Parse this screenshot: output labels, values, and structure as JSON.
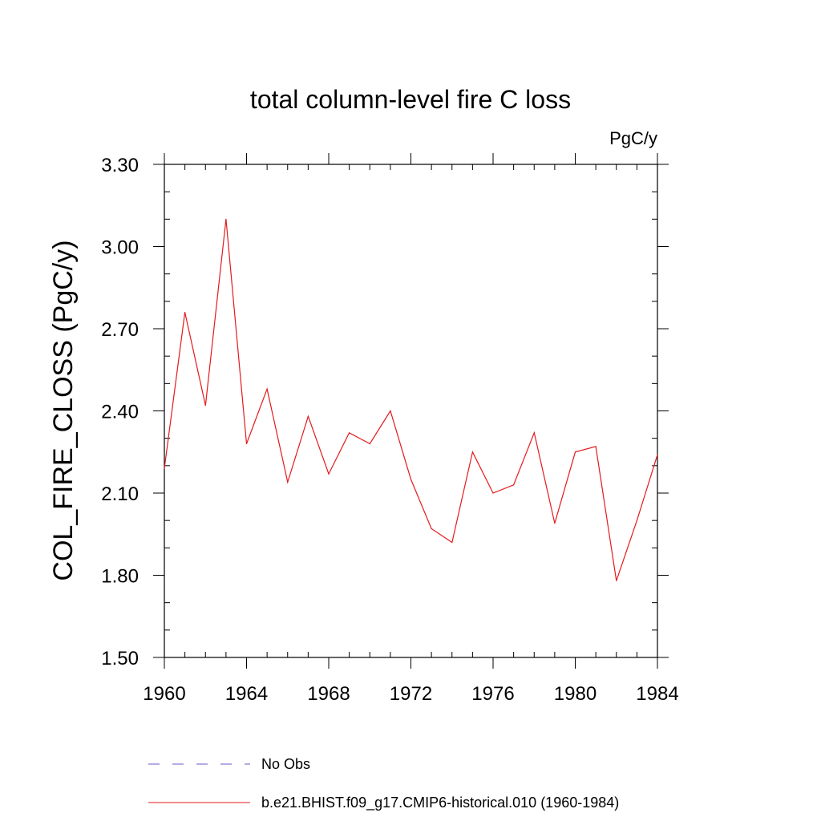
{
  "chart_data": {
    "type": "line",
    "title": "total column-level fire C loss",
    "unit_label": "PgC/y",
    "ylabel": "COL_FIRE_CLOSS  (PgC/y)",
    "xlabel": "",
    "xlim": [
      1960,
      1984
    ],
    "ylim": [
      1.5,
      3.3
    ],
    "x_ticks": [
      "1960",
      "1964",
      "1968",
      "1972",
      "1976",
      "1980",
      "1984"
    ],
    "y_ticks": [
      "1.50",
      "1.80",
      "2.10",
      "2.40",
      "2.70",
      "3.00",
      "3.30"
    ],
    "x_tick_values": [
      1960,
      1964,
      1968,
      1972,
      1976,
      1980,
      1984
    ],
    "y_tick_values": [
      1.5,
      1.8,
      2.1,
      2.4,
      2.7,
      3.0,
      3.3
    ],
    "x_minor_step": 1,
    "y_minor_step": 0.1,
    "grid": false,
    "legend_position": "bottom",
    "series": [
      {
        "name": "b.e21.BHIST.f09_g17.CMIP6-historical.010 (1960-1984)",
        "color": "#e41a1c",
        "dash": "solid",
        "x": [
          1960,
          1961,
          1962,
          1963,
          1964,
          1965,
          1966,
          1967,
          1968,
          1969,
          1970,
          1971,
          1972,
          1973,
          1974,
          1975,
          1976,
          1977,
          1978,
          1979,
          1980,
          1981,
          1982,
          1983,
          1984
        ],
        "values": [
          2.19,
          2.76,
          2.42,
          3.1,
          2.28,
          2.48,
          2.14,
          2.38,
          2.17,
          2.32,
          2.28,
          2.4,
          2.15,
          1.97,
          1.92,
          2.25,
          2.1,
          2.13,
          2.32,
          1.99,
          2.25,
          2.27,
          1.78,
          2.0,
          2.24
        ]
      }
    ],
    "legend": [
      {
        "label": "No Obs",
        "color": "#6a5acd",
        "dash": "dashed"
      },
      {
        "label": "b.e21.BHIST.f09_g17.CMIP6-historical.010 (1960-1984)",
        "color": "#e41a1c",
        "dash": "solid"
      }
    ]
  }
}
